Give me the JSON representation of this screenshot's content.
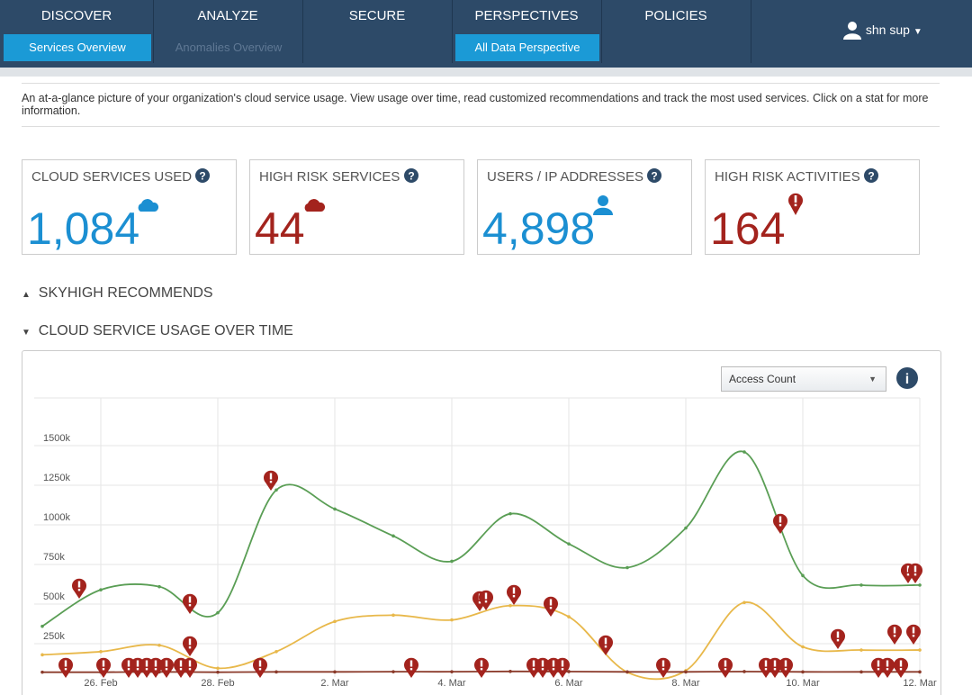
{
  "nav": {
    "tabs": [
      {
        "label": "DISCOVER",
        "sub": "Services Overview"
      },
      {
        "label": "ANALYZE",
        "sub": "Anomalies Overview"
      },
      {
        "label": "SECURE"
      },
      {
        "label": "PERSPECTIVES",
        "sub": "All Data Perspective"
      },
      {
        "label": "POLICIES"
      }
    ],
    "user": "shn sup"
  },
  "description": "An at-a-glance picture of your organization's cloud service usage. View usage over time, read customized recommendations and track the most used services. Click on a stat for more information.",
  "stats": [
    {
      "label": "CLOUD SERVICES USED",
      "value": "1,084"
    },
    {
      "label": "HIGH RISK SERVICES",
      "value": "44"
    },
    {
      "label": "USERS / IP ADDRESSES",
      "value": "4,898"
    },
    {
      "label": "HIGH RISK ACTIVITIES",
      "value": "164"
    }
  ],
  "sections": [
    "SKYHIGH RECOMMENDS",
    "CLOUD SERVICE USAGE OVER TIME"
  ],
  "chart_data": {
    "type": "line",
    "metric": "Access Count",
    "categories": [
      null,
      "26. Feb",
      null,
      "28. Feb",
      null,
      "2. Mar",
      null,
      "4. Mar",
      null,
      "6. Mar",
      null,
      "8. Mar",
      null,
      "10. Mar",
      null,
      "12. Mar"
    ],
    "series": [
      {
        "color": "#5a9e55",
        "values": [
          360000,
          590000,
          610000,
          445000,
          1220000,
          1100000,
          930000,
          770000,
          1070000,
          880000,
          730000,
          980000,
          1460000,
          680000,
          620000,
          620000
        ]
      },
      {
        "color": "#e8b84a",
        "values": [
          180000,
          200000,
          240000,
          95000,
          200000,
          390000,
          430000,
          400000,
          490000,
          420000,
          70000,
          80000,
          510000,
          230000,
          210000,
          210000
        ]
      },
      {
        "color": "#8b3a2a",
        "values": [
          70000,
          70000,
          72000,
          70000,
          72000,
          72000,
          73000,
          73000,
          75000,
          74000,
          72000,
          72000,
          74000,
          72000,
          72000,
          72000
        ]
      }
    ],
    "ylim": [
      0,
      1750000
    ],
    "yticks": [
      {
        "value": 250000,
        "label": "250k"
      },
      {
        "value": 500000,
        "label": "500k"
      },
      {
        "value": 750000,
        "label": "750k"
      },
      {
        "value": 1000000,
        "label": "1000k"
      },
      {
        "value": 1250000,
        "label": "1250k"
      },
      {
        "value": 1500000,
        "label": "1500k"
      }
    ],
    "grid": true
  }
}
